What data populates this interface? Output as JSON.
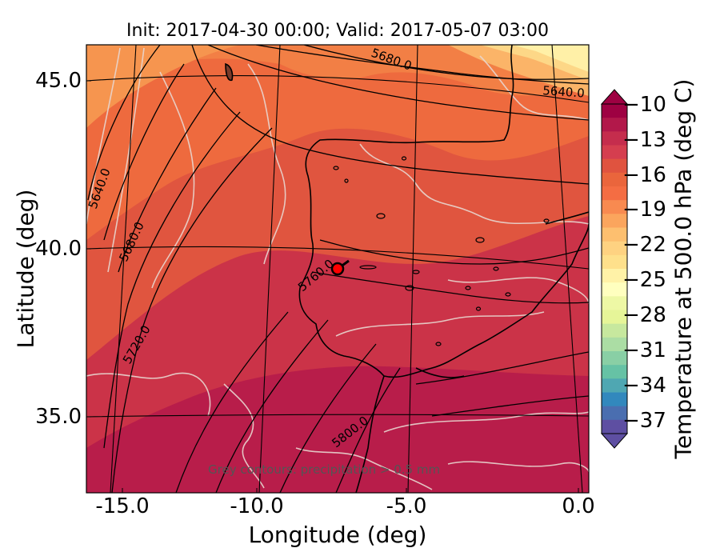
{
  "title": "Init: 2017-04-30 00:00; Valid: 2017-05-07 03:00",
  "x_axis": {
    "label": "Longitude (deg)",
    "ticks": [
      "-15.0",
      "-10.0",
      "-5.0",
      "0.0"
    ]
  },
  "y_axis": {
    "label": "Latitude (deg)",
    "ticks": [
      "45.0",
      "40.0",
      "35.0"
    ]
  },
  "colorbar": {
    "label": "Temperature at 500.0 hPa (deg C)",
    "ticks": [
      "−10",
      "−13",
      "−16",
      "−19",
      "−22",
      "−25",
      "−28",
      "−31",
      "−34",
      "−37"
    ],
    "range": [
      -38,
      -10
    ],
    "extend": "both",
    "colormap": "Spectral"
  },
  "note": "Grey contours: precipitation  > 0.5 mm",
  "geopotential_contour_labels": [
    "5680.0",
    "5640.0",
    "5640.0",
    "5680.0",
    "5760.0",
    "5720.0",
    "5800.0"
  ],
  "marker": {
    "longitude": -7.6,
    "latitude": 39.3,
    "color": "#ff0000"
  },
  "map_extent": {
    "lon": [
      -16,
      0.3
    ],
    "lat": [
      32.7,
      46.0
    ]
  }
}
